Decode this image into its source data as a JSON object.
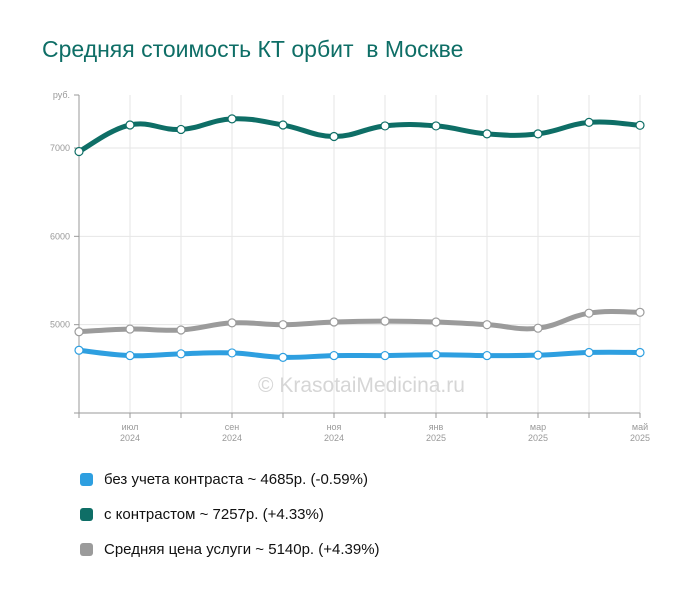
{
  "title": "Средняя стоимость КТ орбит  в Москве",
  "watermark": "© KrasotaiMedicina.ru",
  "chart_data": {
    "type": "line",
    "ylabel": "руб.",
    "ylim": [
      4000,
      7600
    ],
    "y_ticks": [
      5000,
      6000,
      7000
    ],
    "grid": true,
    "x_tick_labels": [
      {
        "index": 1,
        "month": "июл",
        "year": "2024"
      },
      {
        "index": 3,
        "month": "сен",
        "year": "2024"
      },
      {
        "index": 5,
        "month": "ноя",
        "year": "2024"
      },
      {
        "index": 7,
        "month": "янв",
        "year": "2025"
      },
      {
        "index": 9,
        "month": "мар",
        "year": "2025"
      },
      {
        "index": 11,
        "month": "май",
        "year": "2025"
      }
    ],
    "series": [
      {
        "name": "без учета контраста",
        "color": "#2e9fe0",
        "values": [
          4710,
          4650,
          4670,
          4680,
          4630,
          4650,
          4650,
          4660,
          4650,
          4655,
          4685,
          4685
        ]
      },
      {
        "name": "с контрастом",
        "color": "#0e6e66",
        "values": [
          6960,
          7260,
          7210,
          7330,
          7260,
          7130,
          7250,
          7250,
          7160,
          7160,
          7290,
          7257
        ]
      },
      {
        "name": "Средняя цена услуги",
        "color": "#9b9b9b",
        "values": [
          4920,
          4950,
          4940,
          5020,
          5000,
          5030,
          5040,
          5030,
          5000,
          4960,
          5130,
          5140
        ]
      }
    ],
    "legend": [
      {
        "text": "без учета контраста ~ 4685р. (-0.59%)",
        "color": "#2e9fe0"
      },
      {
        "text": "с контрастом ~ 7257р. (+4.33%)",
        "color": "#0e6e66"
      },
      {
        "text": "Средняя цена услуги ~ 5140р. (+4.39%)",
        "color": "#9b9b9b"
      }
    ],
    "legend_position": "bottom"
  }
}
